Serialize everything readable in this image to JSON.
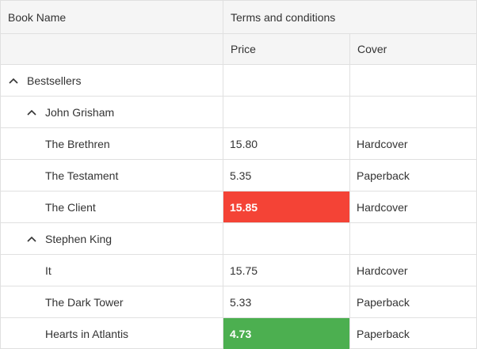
{
  "header": {
    "book_name": "Book Name",
    "terms": "Terms and conditions",
    "price": "Price",
    "cover": "Cover"
  },
  "colors": {
    "highlight_high": "#f44336",
    "highlight_low": "#4caf50"
  },
  "groups": {
    "bestsellers": "Bestsellers",
    "grisham": "John Grisham",
    "king": "Stephen King"
  },
  "rows": [
    {
      "name": "The Brethren",
      "price": "15.80",
      "cover": "Hardcover"
    },
    {
      "name": "The Testament",
      "price": "5.35",
      "cover": "Paperback"
    },
    {
      "name": "The Client",
      "price": "15.85",
      "cover": "Hardcover"
    },
    {
      "name": "It",
      "price": "15.75",
      "cover": "Hardcover"
    },
    {
      "name": "The Dark Tower",
      "price": "5.33",
      "cover": "Paperback"
    },
    {
      "name": "Hearts in Atlantis",
      "price": "4.73",
      "cover": "Paperback"
    }
  ]
}
